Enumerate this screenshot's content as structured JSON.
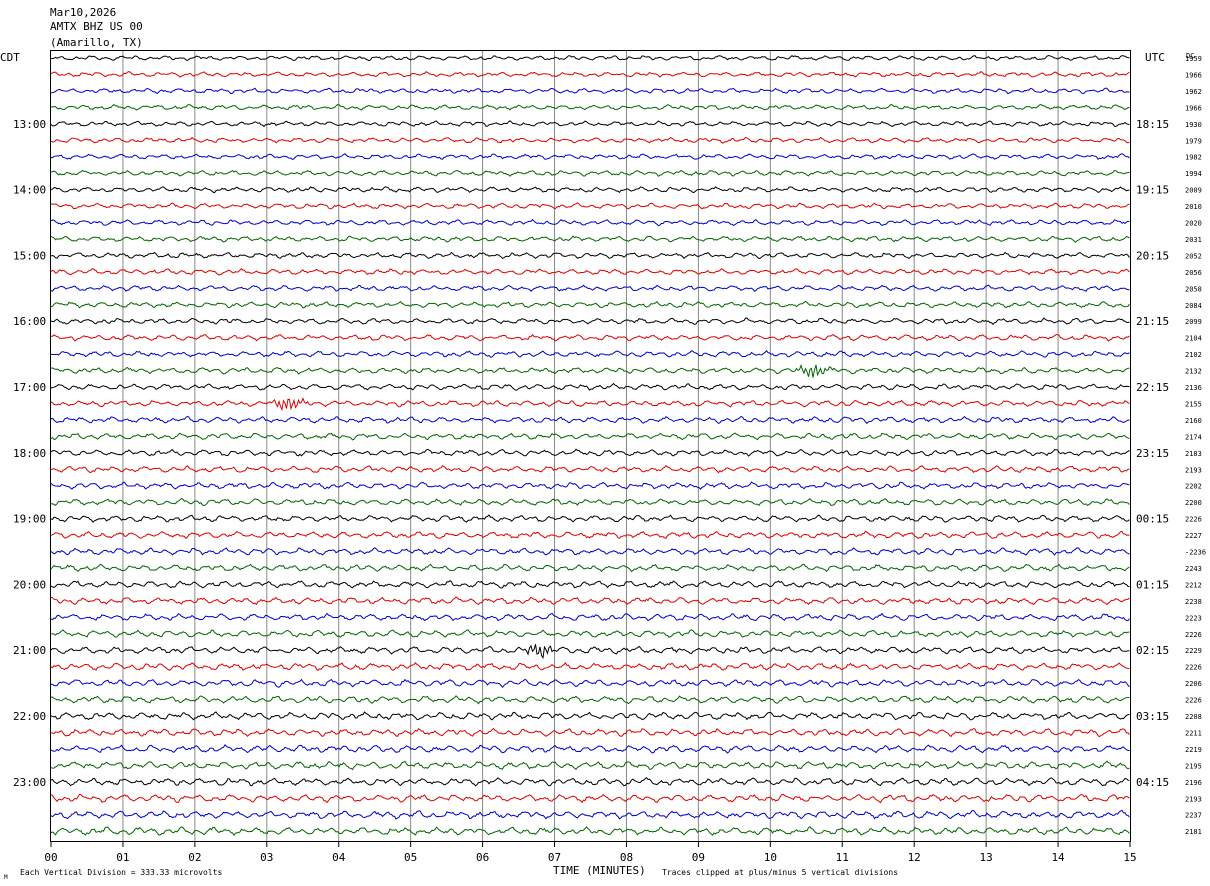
{
  "header": {
    "date": "Mar10,2026",
    "station": "AMTX BHZ US 00",
    "location": "(Amarillo, TX)"
  },
  "left_zone": "CDT",
  "right_zone": "UTC",
  "dc_label": "DC",
  "footer": {
    "scale_note": "Each Vertical Division =  333.33 microvolts",
    "xlabel": "TIME (MINUTES)",
    "clip_note": "Traces clipped at plus/minus 5 vertical divisions"
  },
  "colors": [
    "#000000",
    "#dd0000",
    "#0000cc",
    "#006600"
  ],
  "chart_data": {
    "type": "line",
    "x_ticks": [
      "00",
      "01",
      "02",
      "03",
      "04",
      "05",
      "06",
      "07",
      "08",
      "09",
      "10",
      "11",
      "12",
      "13",
      "14",
      "15"
    ],
    "xlim": [
      0,
      15
    ],
    "grid": true,
    "row_count": 48,
    "left_hour_labels": [
      "13:00",
      "14:00",
      "15:00",
      "16:00",
      "17:00",
      "18:00",
      "19:00",
      "20:00",
      "21:00",
      "22:00",
      "23:00"
    ],
    "right_hour_labels": [
      "18:15",
      "19:15",
      "20:15",
      "21:15",
      "22:15",
      "23:15",
      "00:15",
      "01:15",
      "02:15",
      "03:15",
      "04:15"
    ],
    "dc_values": [
      "1959",
      "1966",
      "1962",
      "1966",
      "1930",
      "1979",
      "1982",
      "1994",
      "2009",
      "2010",
      "2020",
      "2031",
      "2052",
      "2056",
      "2058",
      "2084",
      "2099",
      "2104",
      "2102",
      "2132",
      "2136",
      "2155",
      "2160",
      "2174",
      "2183",
      "2193",
      "2202",
      "2200",
      "2226",
      "2227",
      "-2236",
      "2243",
      "2212",
      "2238",
      "2223",
      "2226",
      "2229",
      "2226",
      "2206",
      "2226",
      "2208",
      "2211",
      "2219",
      "2195",
      "2196",
      "2193",
      "2237",
      "2181"
    ],
    "events": [
      {
        "row": 19,
        "minute": 10.6,
        "series": "green"
      },
      {
        "row": 21,
        "minute": 3.3,
        "series": "red"
      },
      {
        "row": 36,
        "minute": 6.8,
        "series": "black"
      }
    ]
  }
}
